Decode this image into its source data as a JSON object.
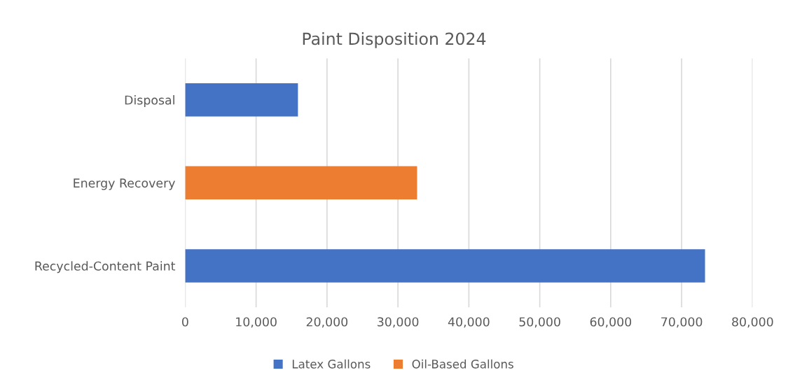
{
  "chart_data": {
    "type": "bar",
    "orientation": "horizontal",
    "title": "Paint Disposition 2024",
    "categories": [
      "Disposal",
      "Energy Recovery",
      "Recycled-Content Paint"
    ],
    "series": [
      {
        "name": "Latex Gallons",
        "color": "#4472c4",
        "values": [
          15900,
          null,
          73300
        ]
      },
      {
        "name": "Oil-Based Gallons",
        "color": "#ed7d31",
        "values": [
          null,
          32700,
          null
        ]
      }
    ],
    "xlim": [
      0,
      80000
    ],
    "xticks": [
      {
        "value": 0,
        "label": "0"
      },
      {
        "value": 10000,
        "label": "10,000"
      },
      {
        "value": 20000,
        "label": "20,000"
      },
      {
        "value": 30000,
        "label": "30,000"
      },
      {
        "value": 40000,
        "label": "40,000"
      },
      {
        "value": 50000,
        "label": "50,000"
      },
      {
        "value": 60000,
        "label": "60,000"
      },
      {
        "value": 70000,
        "label": "70,000"
      },
      {
        "value": 80000,
        "label": "80,000"
      }
    ],
    "grid": "x",
    "legend": "bottom"
  }
}
